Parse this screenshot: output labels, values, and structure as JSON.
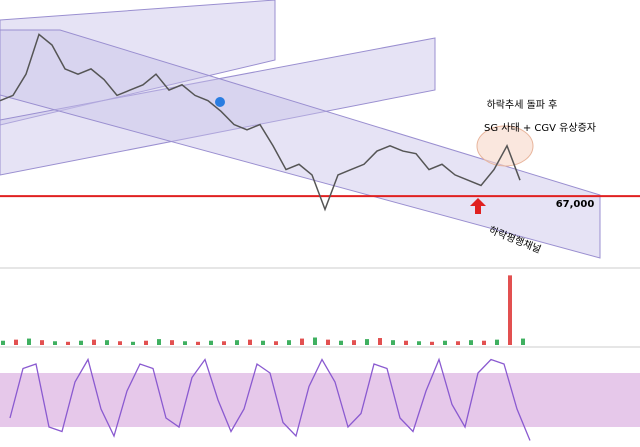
{
  "chart_data": {
    "type": "line",
    "x": [
      0,
      13,
      26,
      39,
      52,
      65,
      78,
      91,
      104,
      117,
      130,
      143,
      156,
      169,
      182,
      195,
      208,
      221,
      234,
      247,
      260,
      273,
      286,
      299,
      312,
      325,
      338,
      351,
      364,
      377,
      390,
      403,
      416,
      429,
      442,
      455,
      468,
      481,
      494,
      507,
      520
    ],
    "values": [
      85000,
      86000,
      90000,
      97500,
      95500,
      91000,
      90000,
      91000,
      89000,
      86000,
      87000,
      88000,
      90000,
      87000,
      88000,
      86000,
      85000,
      83000,
      80500,
      79500,
      80500,
      76500,
      72000,
      73000,
      71000,
      64500,
      71000,
      72000,
      73000,
      75500,
      76500,
      75500,
      75000,
      72000,
      73000,
      71000,
      70000,
      69000,
      72000,
      76500,
      70000
    ],
    "color": "#555555",
    "ylim": [
      54000,
      104000
    ],
    "support": {
      "value": 67000,
      "label": "67,000"
    },
    "annotation_1": "하락추세 돌파 후",
    "annotation_2": "SG 사태 + CGV 유상증자",
    "channel_label": "하락평행채널",
    "volume": [
      8,
      10,
      12,
      9,
      7,
      6,
      8,
      10,
      9,
      7,
      6,
      8,
      11,
      9,
      7,
      6,
      8,
      7,
      9,
      10,
      8,
      7,
      9,
      12,
      14,
      10,
      8,
      9,
      11,
      13,
      9,
      8,
      7,
      6,
      8,
      7,
      9,
      8,
      10,
      130,
      12
    ],
    "volume_lim": [
      0,
      140
    ],
    "oscillator": [
      30,
      85,
      90,
      20,
      15,
      70,
      95,
      40,
      10,
      60,
      90,
      85,
      30,
      20,
      75,
      95,
      50,
      15,
      40,
      90,
      80,
      25,
      10,
      65,
      95,
      70,
      20,
      35,
      90,
      85,
      30,
      15,
      60,
      95,
      45,
      20,
      80,
      95,
      90,
      40,
      5
    ],
    "oscillator_lim": [
      0,
      100
    ],
    "oscillator_band": [
      20,
      80
    ]
  }
}
